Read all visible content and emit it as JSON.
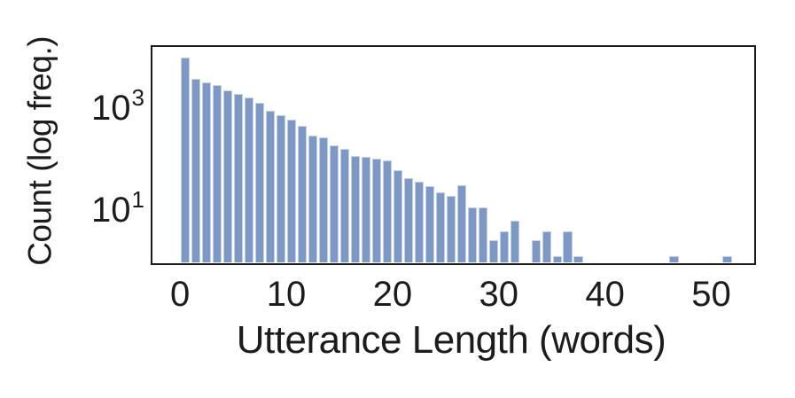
{
  "chart_data": {
    "type": "bar",
    "subtype": "histogram-log-y",
    "xlabel": "Utterance Length (words)",
    "ylabel": "Count (log freq.)",
    "yscale": "log",
    "grid": false,
    "legend": null,
    "x_ticks": [
      0,
      10,
      20,
      30,
      40,
      50
    ],
    "y_ticks": [
      {
        "base": "10",
        "exp": "3",
        "value": 1000
      },
      {
        "base": "10",
        "exp": "1",
        "value": 10
      }
    ],
    "xlim": [
      -2.55,
      54.0
    ],
    "ylim": [
      0.73,
      12500
    ],
    "bar_color": "#7b98c6",
    "bar_edge_color": "#ffffff",
    "frame_color": "#1a1a1a",
    "text_color": "#1c1c1c",
    "bins": [
      {
        "x": 0,
        "count": 8000
      },
      {
        "x": 1,
        "count": 3000
      },
      {
        "x": 2,
        "count": 2550
      },
      {
        "x": 3,
        "count": 2230
      },
      {
        "x": 4,
        "count": 1820
      },
      {
        "x": 5,
        "count": 1550
      },
      {
        "x": 6,
        "count": 1320
      },
      {
        "x": 7,
        "count": 1000
      },
      {
        "x": 8,
        "count": 720
      },
      {
        "x": 9,
        "count": 580
      },
      {
        "x": 10,
        "count": 470
      },
      {
        "x": 11,
        "count": 360
      },
      {
        "x": 12,
        "count": 230
      },
      {
        "x": 13,
        "count": 215
      },
      {
        "x": 14,
        "count": 150
      },
      {
        "x": 15,
        "count": 125
      },
      {
        "x": 16,
        "count": 92
      },
      {
        "x": 17,
        "count": 87
      },
      {
        "x": 18,
        "count": 82
      },
      {
        "x": 19,
        "count": 74
      },
      {
        "x": 20,
        "count": 48
      },
      {
        "x": 21,
        "count": 34
      },
      {
        "x": 22,
        "count": 29
      },
      {
        "x": 23,
        "count": 23
      },
      {
        "x": 24,
        "count": 18
      },
      {
        "x": 25,
        "count": 15
      },
      {
        "x": 26,
        "count": 24
      },
      {
        "x": 27,
        "count": 9
      },
      {
        "x": 28,
        "count": 9
      },
      {
        "x": 29,
        "count": 2
      },
      {
        "x": 30,
        "count": 3
      },
      {
        "x": 31,
        "count": 5
      },
      {
        "x": 33,
        "count": 2
      },
      {
        "x": 34,
        "count": 3
      },
      {
        "x": 35,
        "count": 1
      },
      {
        "x": 36,
        "count": 3
      },
      {
        "x": 37,
        "count": 1
      },
      {
        "x": 46,
        "count": 1
      },
      {
        "x": 51,
        "count": 1
      }
    ]
  }
}
